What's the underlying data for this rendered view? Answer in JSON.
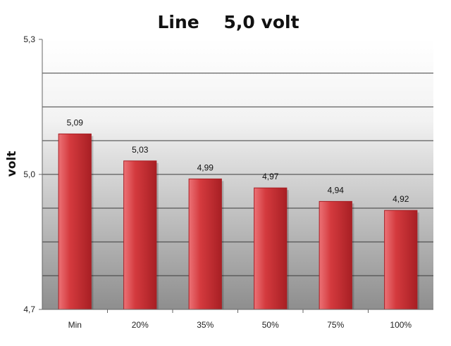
{
  "chart_data": {
    "type": "bar",
    "title": "Line    5,0 volt",
    "xlabel": "",
    "ylabel": "volt",
    "categories": [
      "Min",
      "20%",
      "35%",
      "50%",
      "75%",
      "100%"
    ],
    "values": [
      5.09,
      5.03,
      4.99,
      4.97,
      4.94,
      4.92
    ],
    "value_labels": [
      "5,09",
      "5,03",
      "4,99",
      "4,97",
      "4,94",
      "4,92"
    ],
    "ylim": [
      4.7,
      5.3
    ],
    "yticks": [
      4.7,
      5.0,
      5.3
    ],
    "ytick_labels": [
      "4,7",
      "5,0",
      "5,3"
    ],
    "grid": true,
    "legend": "none",
    "colors": {
      "bar": "#d43a3e",
      "bar_dark": "#a81f24",
      "bar_light": "#ec7276",
      "plot_top": "#ffffff",
      "plot_bottom": "#8e8e8e",
      "gridline": "#3a3a3a"
    }
  }
}
